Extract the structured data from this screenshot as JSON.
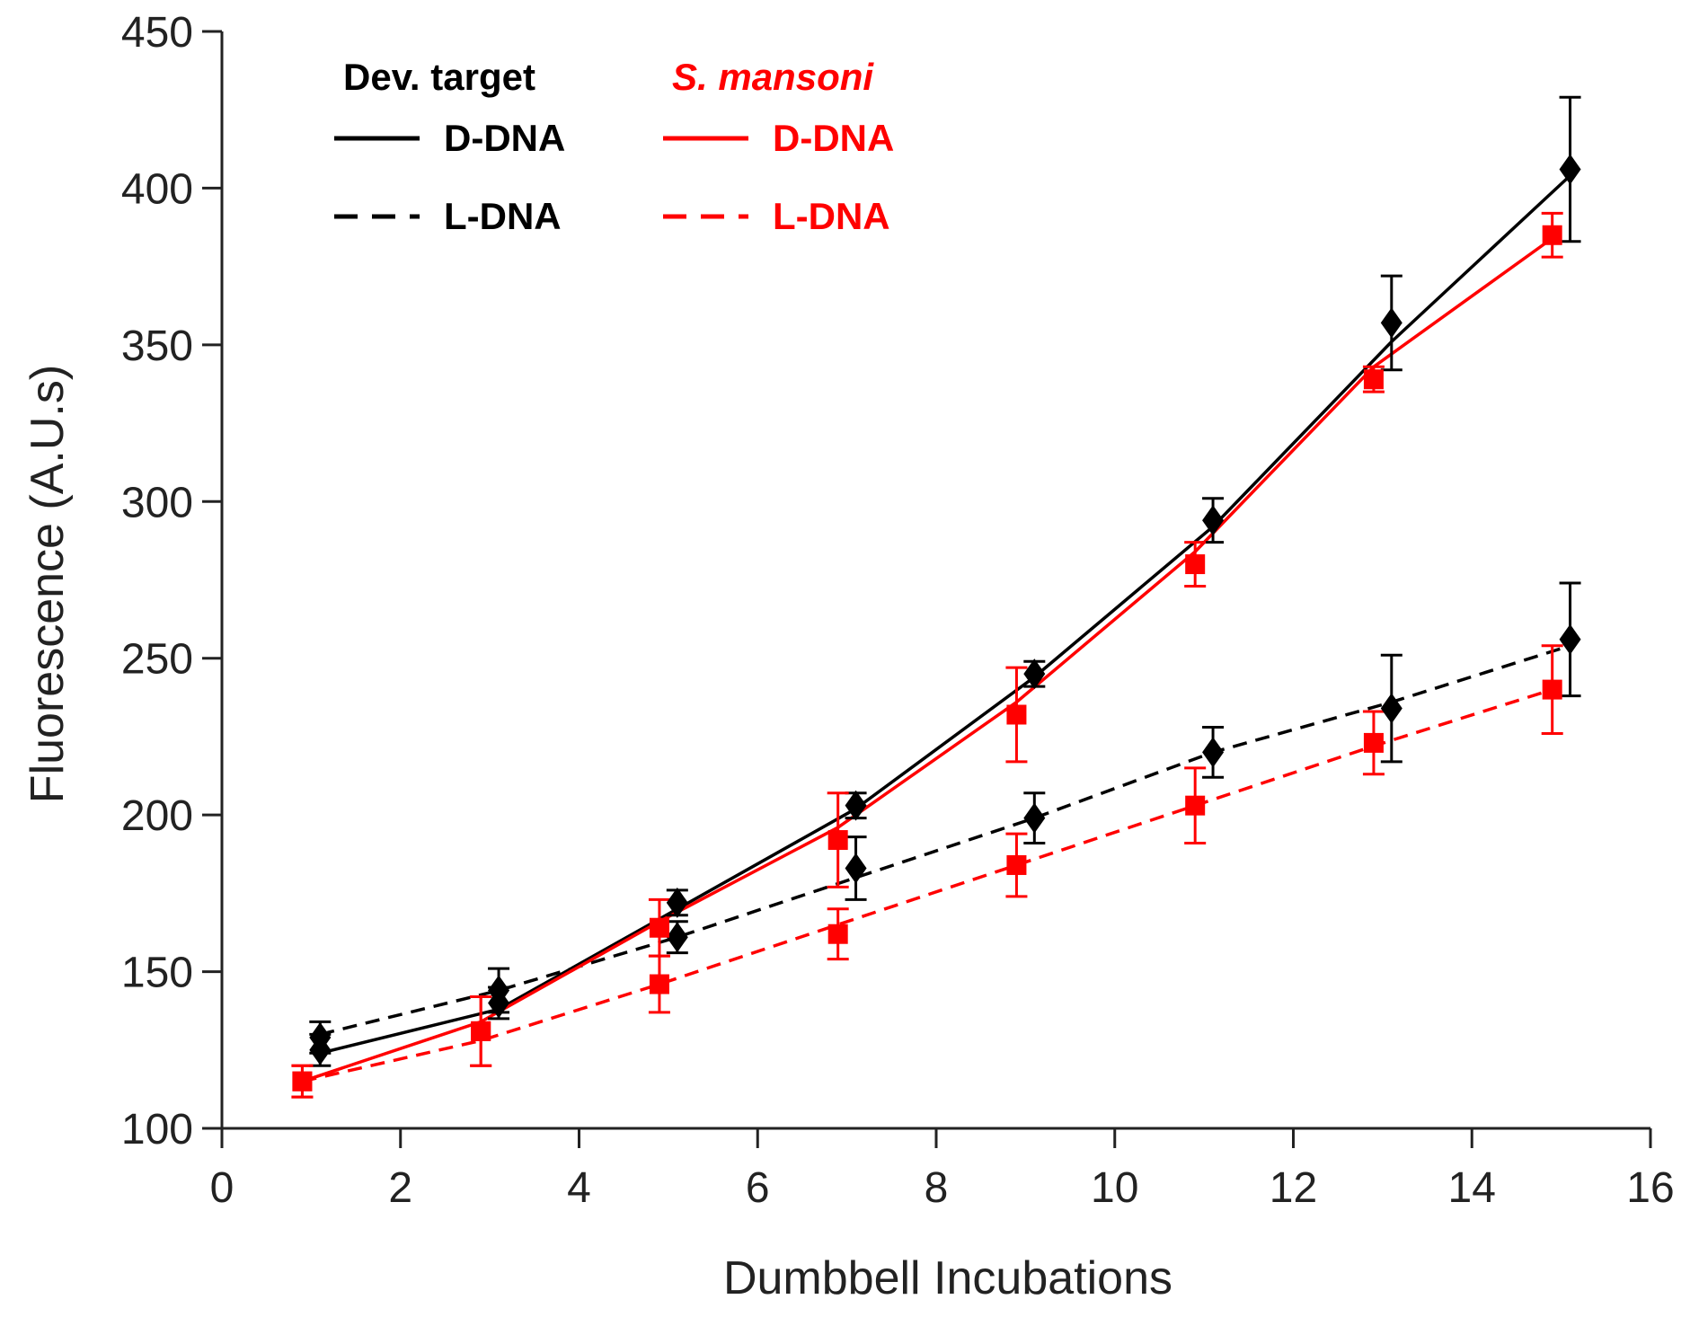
{
  "chart_data": {
    "type": "line",
    "title": "",
    "xlabel": "Dumbbell Incubations",
    "ylabel": "Fluorescence (A.U.s)",
    "xlim": [
      0,
      16
    ],
    "ylim": [
      100,
      450
    ],
    "xticks": [
      0,
      2,
      4,
      6,
      8,
      10,
      12,
      14,
      16
    ],
    "yticks": [
      100,
      150,
      200,
      250,
      300,
      350,
      400,
      450
    ],
    "grid": false,
    "legend": {
      "position": "top-left",
      "groups": [
        {
          "title": "Dev. target",
          "color": "#000000",
          "italic": false
        },
        {
          "title": "S. mansoni",
          "color": "#ff0000",
          "italic": true
        }
      ],
      "entries": [
        "D-DNA",
        "L-DNA"
      ]
    },
    "series": [
      {
        "name": "Dev. target D-DNA",
        "group": "Dev. target",
        "label": "D-DNA",
        "color": "#000000",
        "dash": false,
        "marker": "diamond",
        "x": [
          1.1,
          3.1,
          5.1,
          7.1,
          9.1,
          11.1,
          13.1,
          15.1
        ],
        "y": [
          125,
          140,
          172,
          203,
          245,
          294,
          357,
          406
        ],
        "err": [
          5,
          5,
          4,
          4,
          4,
          7,
          15,
          23
        ]
      },
      {
        "name": "Dev. target L-DNA",
        "group": "Dev. target",
        "label": "L-DNA",
        "color": "#000000",
        "dash": true,
        "marker": "diamond",
        "x": [
          1.1,
          3.1,
          5.1,
          7.1,
          9.1,
          11.1,
          13.1,
          15.1
        ],
        "y": [
          129,
          144,
          161,
          183,
          199,
          220,
          234,
          256
        ],
        "err": [
          5,
          7,
          5,
          10,
          8,
          8,
          17,
          18
        ]
      },
      {
        "name": "S. mansoni D-DNA",
        "group": "S. mansoni",
        "label": "D-DNA",
        "color": "#ff0000",
        "dash": false,
        "marker": "square",
        "x": [
          0.9,
          2.9,
          4.9,
          6.9,
          8.9,
          10.9,
          12.9,
          14.9
        ],
        "y": [
          115,
          131,
          164,
          192,
          232,
          280,
          339,
          385
        ],
        "err": [
          5,
          11,
          9,
          15,
          15,
          7,
          4,
          7
        ]
      },
      {
        "name": "S. mansoni L-DNA",
        "group": "S. mansoni",
        "label": "L-DNA",
        "color": "#ff0000",
        "dash": true,
        "marker": "square",
        "x": [
          0.9,
          2.9,
          4.9,
          6.9,
          8.9,
          10.9,
          12.9,
          14.9
        ],
        "y": [
          115,
          131,
          146,
          162,
          184,
          203,
          223,
          240
        ],
        "err": [
          5,
          11,
          9,
          8,
          10,
          12,
          10,
          14
        ]
      }
    ],
    "fits": [
      {
        "series": "Dev. target D-DNA",
        "y": [
          124,
          138,
          170,
          202,
          244,
          292,
          351,
          404
        ]
      },
      {
        "series": "Dev. target L-DNA",
        "y": [
          130,
          144,
          161,
          180,
          199,
          220,
          236,
          254
        ]
      },
      {
        "series": "S. mansoni D-DNA",
        "y": [
          115,
          134,
          166,
          196,
          236,
          284,
          343,
          384
        ]
      },
      {
        "series": "S. mansoni L-DNA",
        "y": [
          115,
          128,
          146,
          165,
          184,
          203,
          222,
          240
        ]
      }
    ]
  }
}
